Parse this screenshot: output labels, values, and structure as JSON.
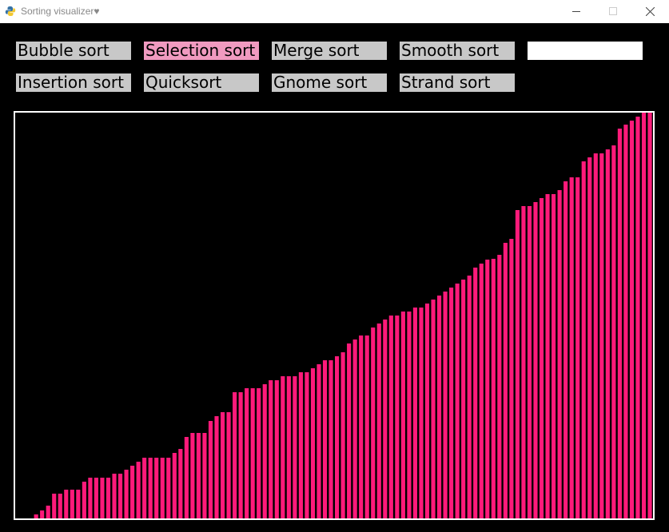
{
  "window": {
    "title": "Sorting visualizer♥",
    "icons": [
      "python-app-icon",
      "minimize-icon",
      "maximize-icon",
      "close-icon"
    ]
  },
  "buttons": {
    "bubble": "Bubble sort",
    "selection": "Selection sort",
    "merge": "Merge sort",
    "smooth": "Smooth sort",
    "insertion": "Insertion sort",
    "quick": "Quicksort",
    "gnome": "Gnome sort",
    "strand": "Strand sort",
    "active": "Selection sort"
  },
  "input": {
    "value": ""
  },
  "colors": {
    "bar": "#ff1a7a",
    "active_button": "#f09ac0",
    "button": "#c8c8c8",
    "background": "#000000"
  },
  "chart_data": {
    "type": "bar",
    "title": "",
    "xlabel": "",
    "ylabel": "",
    "ylim": [
      0,
      508
    ],
    "values": [
      0,
      0,
      0,
      5,
      10,
      16,
      31,
      31,
      36,
      36,
      36,
      46,
      51,
      51,
      51,
      51,
      56,
      56,
      61,
      66,
      71,
      76,
      76,
      76,
      76,
      76,
      82,
      87,
      102,
      107,
      107,
      107,
      122,
      128,
      133,
      133,
      158,
      158,
      163,
      163,
      163,
      168,
      173,
      173,
      178,
      178,
      178,
      183,
      183,
      188,
      193,
      198,
      198,
      203,
      208,
      219,
      224,
      229,
      229,
      239,
      244,
      249,
      254,
      254,
      259,
      259,
      264,
      264,
      269,
      274,
      279,
      284,
      289,
      294,
      299,
      304,
      314,
      319,
      324,
      325,
      330,
      345,
      350,
      386,
      391,
      391,
      396,
      401,
      406,
      406,
      411,
      422,
      427,
      427,
      447,
      452,
      457,
      457,
      462,
      467,
      488,
      493,
      498,
      503,
      508,
      508
    ]
  }
}
